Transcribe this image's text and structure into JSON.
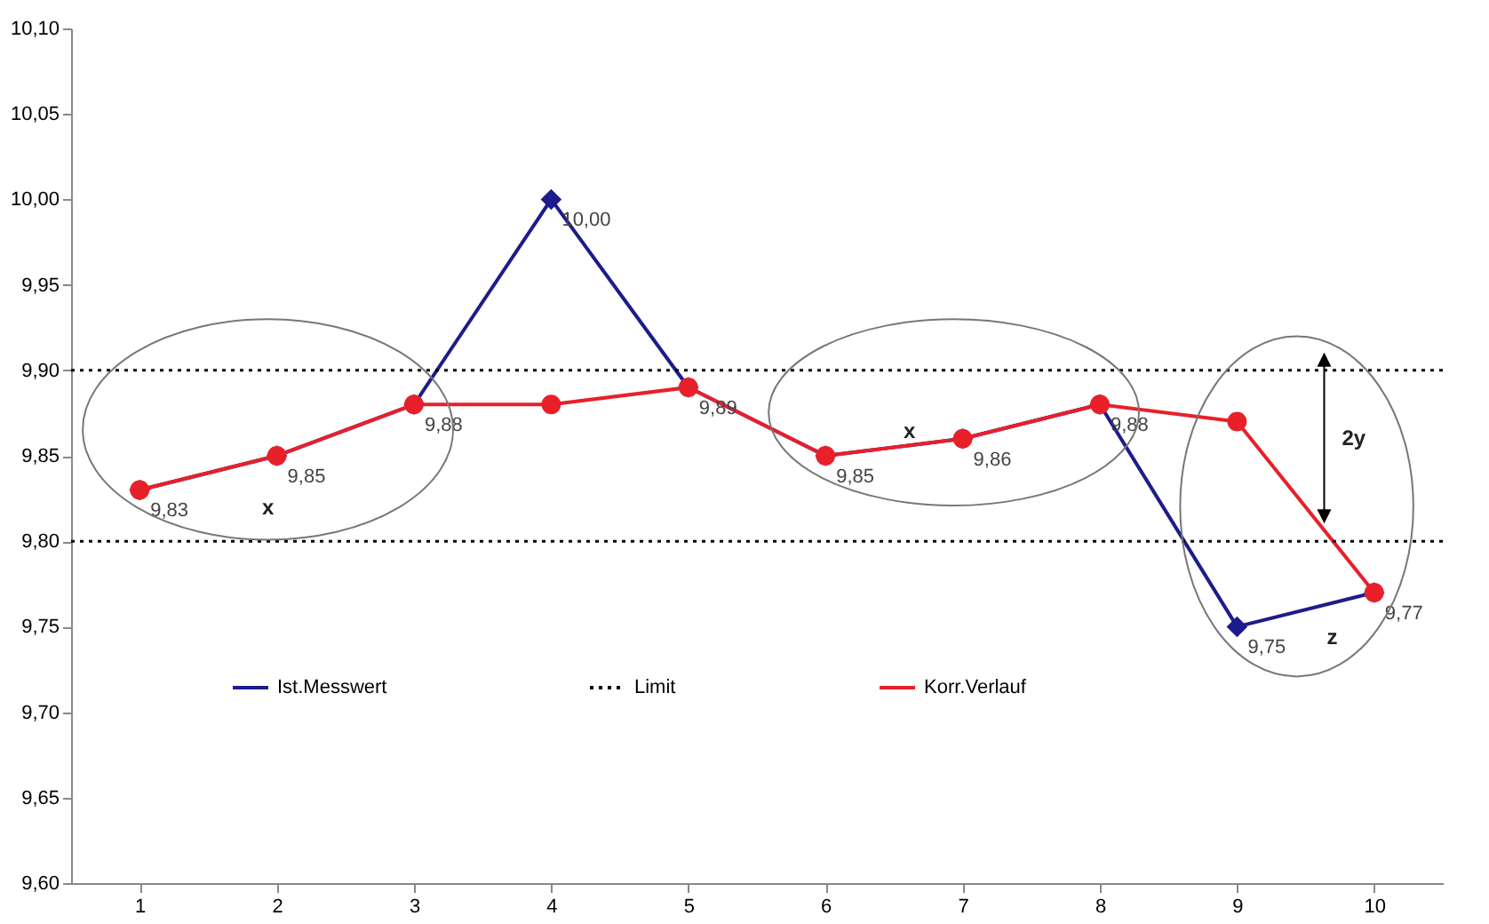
{
  "chart_data": {
    "type": "line",
    "categories": [
      "1",
      "2",
      "3",
      "4",
      "5",
      "6",
      "7",
      "8",
      "9",
      "10"
    ],
    "series": [
      {
        "name": "Ist.Messwert",
        "color": "#1c1c8c",
        "marker": "diamond",
        "values": [
          9.83,
          9.85,
          9.88,
          10.0,
          9.89,
          9.85,
          9.86,
          9.88,
          9.75,
          9.77
        ],
        "value_labels": [
          "9,83",
          "9,85",
          "9,88",
          "10,00",
          "9,89",
          "9,85",
          "9,86",
          "9,88",
          "9,75",
          "9,77"
        ]
      },
      {
        "name": "Korr.Verlauf",
        "color": "#e8202a",
        "marker": "circle",
        "values": [
          9.83,
          9.85,
          9.88,
          9.88,
          9.89,
          9.85,
          9.86,
          9.88,
          9.87,
          9.77
        ]
      }
    ],
    "ylim": [
      9.6,
      10.1
    ],
    "yticks": [
      {
        "value": 9.6,
        "label": "9,60"
      },
      {
        "value": 9.65,
        "label": "9,65"
      },
      {
        "value": 9.7,
        "label": "9,70"
      },
      {
        "value": 9.75,
        "label": "9,75"
      },
      {
        "value": 9.8,
        "label": "9,80"
      },
      {
        "value": 9.85,
        "label": "9,85"
      },
      {
        "value": 9.9,
        "label": "9,90"
      },
      {
        "value": 9.95,
        "label": "9,95"
      },
      {
        "value": 10.0,
        "label": "10,00"
      },
      {
        "value": 10.05,
        "label": "10,05"
      },
      {
        "value": 10.1,
        "label": "10,10"
      }
    ],
    "ref_lines": [
      {
        "axis": "y",
        "value": 9.9,
        "label": "Limit",
        "color": "#000000",
        "line_style": "dotted"
      },
      {
        "axis": "y",
        "value": 9.8,
        "color": "#000000",
        "line_style": "dotted"
      }
    ],
    "annotations": [
      "x",
      "x",
      "z",
      "2y"
    ],
    "grid": false,
    "legend": "bottom"
  }
}
